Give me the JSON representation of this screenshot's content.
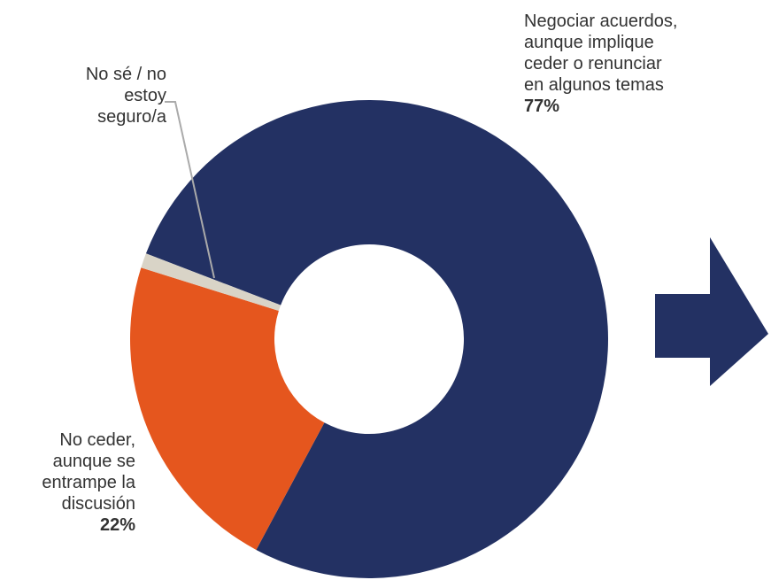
{
  "chart_data": {
    "type": "donut",
    "categories": [
      "Negociar acuerdos,\naunque implique\nceder o renunciar\nen algunos temas",
      "No ceder,\naunque se\nentrampe la\ndiscusión",
      "No sé / no\nestoy\nseguro/a"
    ],
    "values": [
      77,
      22,
      1
    ],
    "value_labels": [
      "77%",
      "22%",
      null
    ],
    "colors": [
      "#233163",
      "#e5561e",
      "#d9d4c7"
    ]
  }
}
